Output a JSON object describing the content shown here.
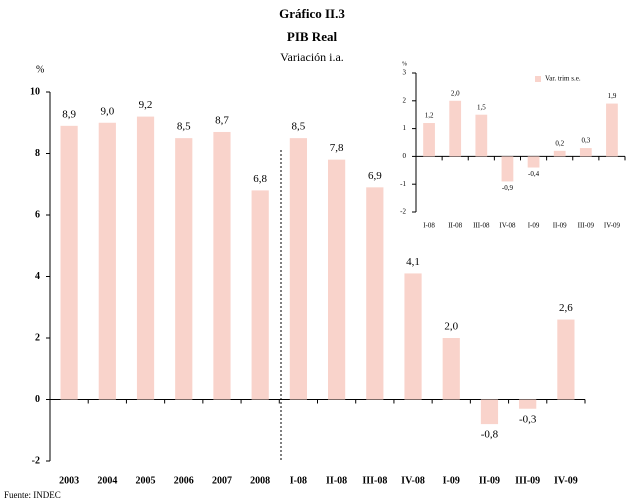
{
  "chart_data": [
    {
      "type": "bar",
      "title": "Gráfico II.3",
      "subtitle": "PIB Real",
      "subtitle2": "Variación i.a.",
      "ylabel": "%",
      "source": "Fuente: INDEC",
      "categories": [
        "2003",
        "2004",
        "2005",
        "2006",
        "2007",
        "2008",
        "I-08",
        "II-08",
        "III-08",
        "IV-08",
        "I-09",
        "II-09",
        "III-09",
        "IV-09"
      ],
      "values": [
        8.9,
        9.0,
        9.2,
        8.5,
        8.7,
        6.8,
        8.5,
        7.8,
        6.9,
        4.1,
        2.0,
        -0.8,
        -0.3,
        2.6
      ],
      "value_labels": [
        "8,9",
        "9,0",
        "9,2",
        "8,5",
        "8,7",
        "6,8",
        "8,5",
        "7,8",
        "6,9",
        "4,1",
        "2,0",
        "-0,8",
        "-0,3",
        "2,6"
      ],
      "color": "#f9d3cb",
      "ylim": [
        -2,
        10
      ],
      "yticks": [
        -2,
        0,
        2,
        4,
        6,
        8,
        10
      ]
    },
    {
      "type": "bar",
      "ylabel": "%",
      "legend": "Var. trim s.e.",
      "legend_position": "upper right",
      "categories": [
        "I-08",
        "II-08",
        "III-08",
        "IV-08",
        "I-09",
        "II-09",
        "III-09",
        "IV-09"
      ],
      "values": [
        1.2,
        2.0,
        1.5,
        -0.9,
        -0.4,
        0.2,
        0.3,
        1.9
      ],
      "value_labels": [
        "1,2",
        "2,0",
        "1,5",
        "-0,9",
        "-0,4",
        "0,2",
        "0,3",
        "1,9"
      ],
      "color": "#f9d3cb",
      "ylim": [
        -2,
        3
      ],
      "yticks": [
        -2,
        -1,
        0,
        1,
        2,
        3
      ]
    }
  ]
}
